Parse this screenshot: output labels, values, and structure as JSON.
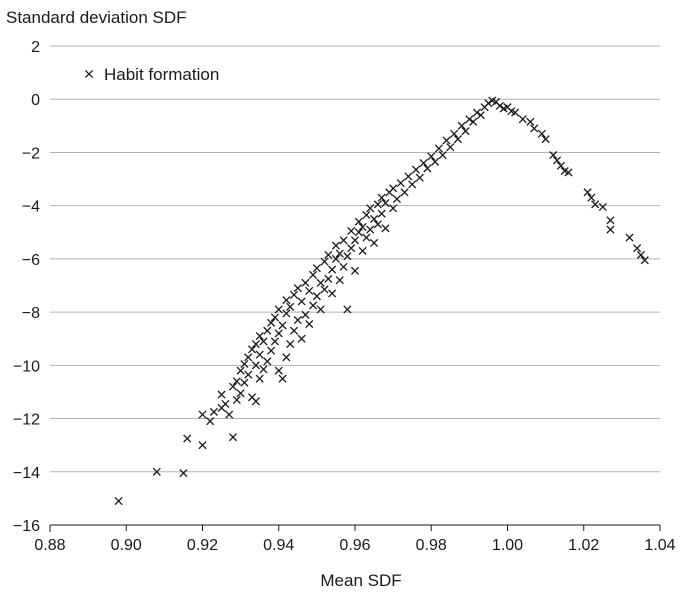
{
  "chart_data": {
    "type": "scatter",
    "title": "",
    "xlabel": "Mean SDF",
    "ylabel": "Standard deviation SDF",
    "xlim": [
      0.88,
      1.04
    ],
    "ylim": [
      -16,
      2
    ],
    "xticks": [
      "0.88",
      "0.90",
      "0.92",
      "0.94",
      "0.96",
      "0.98",
      "1.00",
      "1.02",
      "1.04"
    ],
    "yticks": [
      "2",
      "0",
      "−2",
      "−4",
      "−6",
      "−8",
      "−10",
      "−12",
      "−14",
      "−16"
    ],
    "grid": "horizontal",
    "legend_position": "top-left",
    "marker": "x",
    "series": [
      {
        "name": "Habit formation",
        "points": [
          [
            0.898,
            -15.1
          ],
          [
            0.908,
            -14.0
          ],
          [
            0.915,
            -14.05
          ],
          [
            0.916,
            -12.75
          ],
          [
            0.92,
            -11.85
          ],
          [
            0.92,
            -13.0
          ],
          [
            0.922,
            -12.1
          ],
          [
            0.923,
            -11.75
          ],
          [
            0.925,
            -11.1
          ],
          [
            0.925,
            -11.6
          ],
          [
            0.926,
            -11.45
          ],
          [
            0.927,
            -11.85
          ],
          [
            0.928,
            -12.7
          ],
          [
            0.928,
            -10.8
          ],
          [
            0.929,
            -11.3
          ],
          [
            0.929,
            -10.6
          ],
          [
            0.93,
            -11.05
          ],
          [
            0.93,
            -10.2
          ],
          [
            0.931,
            -10.65
          ],
          [
            0.931,
            -9.95
          ],
          [
            0.932,
            -10.35
          ],
          [
            0.932,
            -9.7
          ],
          [
            0.933,
            -11.2
          ],
          [
            0.933,
            -9.4
          ],
          [
            0.934,
            -11.35
          ],
          [
            0.934,
            -10.0
          ],
          [
            0.934,
            -9.2
          ],
          [
            0.935,
            -10.5
          ],
          [
            0.935,
            -9.6
          ],
          [
            0.935,
            -8.9
          ],
          [
            0.936,
            -10.15
          ],
          [
            0.936,
            -9.1
          ],
          [
            0.937,
            -9.85
          ],
          [
            0.937,
            -8.7
          ],
          [
            0.938,
            -9.45
          ],
          [
            0.938,
            -8.4
          ],
          [
            0.939,
            -9.1
          ],
          [
            0.939,
            -8.2
          ],
          [
            0.94,
            -10.2
          ],
          [
            0.94,
            -8.8
          ],
          [
            0.94,
            -7.9
          ],
          [
            0.941,
            -10.5
          ],
          [
            0.941,
            -8.5
          ],
          [
            0.942,
            -9.7
          ],
          [
            0.942,
            -8.05
          ],
          [
            0.942,
            -7.55
          ],
          [
            0.943,
            -9.2
          ],
          [
            0.943,
            -7.8
          ],
          [
            0.944,
            -8.7
          ],
          [
            0.944,
            -7.35
          ],
          [
            0.945,
            -8.3
          ],
          [
            0.945,
            -7.1
          ],
          [
            0.946,
            -9.0
          ],
          [
            0.946,
            -7.6
          ],
          [
            0.947,
            -8.1
          ],
          [
            0.947,
            -6.9
          ],
          [
            0.948,
            -8.45
          ],
          [
            0.948,
            -7.2
          ],
          [
            0.949,
            -7.75
          ],
          [
            0.949,
            -6.6
          ],
          [
            0.95,
            -7.4
          ],
          [
            0.95,
            -6.35
          ],
          [
            0.951,
            -7.9
          ],
          [
            0.951,
            -6.9
          ],
          [
            0.952,
            -7.15
          ],
          [
            0.952,
            -6.1
          ],
          [
            0.953,
            -6.75
          ],
          [
            0.953,
            -5.85
          ],
          [
            0.954,
            -7.3
          ],
          [
            0.954,
            -6.4
          ],
          [
            0.955,
            -6.0
          ],
          [
            0.955,
            -5.5
          ],
          [
            0.956,
            -6.8
          ],
          [
            0.956,
            -5.8
          ],
          [
            0.957,
            -6.3
          ],
          [
            0.957,
            -5.3
          ],
          [
            0.958,
            -7.9
          ],
          [
            0.958,
            -5.9
          ],
          [
            0.959,
            -5.6
          ],
          [
            0.959,
            -4.95
          ],
          [
            0.96,
            -6.45
          ],
          [
            0.96,
            -5.3
          ],
          [
            0.961,
            -5.0
          ],
          [
            0.961,
            -4.6
          ],
          [
            0.962,
            -5.7
          ],
          [
            0.962,
            -4.8
          ],
          [
            0.963,
            -5.2
          ],
          [
            0.963,
            -4.35
          ],
          [
            0.964,
            -4.9
          ],
          [
            0.964,
            -4.1
          ],
          [
            0.965,
            -5.4
          ],
          [
            0.965,
            -4.5
          ],
          [
            0.966,
            -4.7
          ],
          [
            0.966,
            -3.95
          ],
          [
            0.967,
            -4.3
          ],
          [
            0.967,
            -3.7
          ],
          [
            0.968,
            -4.85
          ],
          [
            0.968,
            -3.9
          ],
          [
            0.969,
            -3.5
          ],
          [
            0.97,
            -4.1
          ],
          [
            0.97,
            -3.35
          ],
          [
            0.971,
            -3.75
          ],
          [
            0.972,
            -3.15
          ],
          [
            0.973,
            -3.5
          ],
          [
            0.974,
            -2.9
          ],
          [
            0.975,
            -3.2
          ],
          [
            0.976,
            -2.65
          ],
          [
            0.977,
            -2.95
          ],
          [
            0.978,
            -2.4
          ],
          [
            0.979,
            -2.6
          ],
          [
            0.98,
            -2.15
          ],
          [
            0.981,
            -2.35
          ],
          [
            0.982,
            -1.85
          ],
          [
            0.983,
            -2.1
          ],
          [
            0.984,
            -1.55
          ],
          [
            0.985,
            -1.8
          ],
          [
            0.986,
            -1.3
          ],
          [
            0.987,
            -1.5
          ],
          [
            0.988,
            -1.0
          ],
          [
            0.989,
            -1.2
          ],
          [
            0.99,
            -0.75
          ],
          [
            0.991,
            -0.85
          ],
          [
            0.992,
            -0.5
          ],
          [
            0.993,
            -0.6
          ],
          [
            0.994,
            -0.3
          ],
          [
            0.995,
            -0.15
          ],
          [
            0.996,
            -0.05
          ],
          [
            0.997,
            -0.1
          ],
          [
            0.998,
            -0.25
          ],
          [
            0.999,
            -0.35
          ],
          [
            1.0,
            -0.3
          ],
          [
            1.001,
            -0.45
          ],
          [
            1.002,
            -0.5
          ],
          [
            1.004,
            -0.75
          ],
          [
            1.006,
            -0.85
          ],
          [
            1.007,
            -1.1
          ],
          [
            1.009,
            -1.3
          ],
          [
            1.01,
            -1.5
          ],
          [
            1.012,
            -2.1
          ],
          [
            1.013,
            -2.3
          ],
          [
            1.014,
            -2.5
          ],
          [
            1.015,
            -2.7
          ],
          [
            1.016,
            -2.75
          ],
          [
            1.021,
            -3.5
          ],
          [
            1.022,
            -3.7
          ],
          [
            1.023,
            -3.95
          ],
          [
            1.025,
            -4.05
          ],
          [
            1.027,
            -4.55
          ],
          [
            1.027,
            -4.9
          ],
          [
            1.032,
            -5.2
          ],
          [
            1.034,
            -5.6
          ],
          [
            1.035,
            -5.85
          ],
          [
            1.036,
            -6.05
          ]
        ]
      }
    ]
  }
}
